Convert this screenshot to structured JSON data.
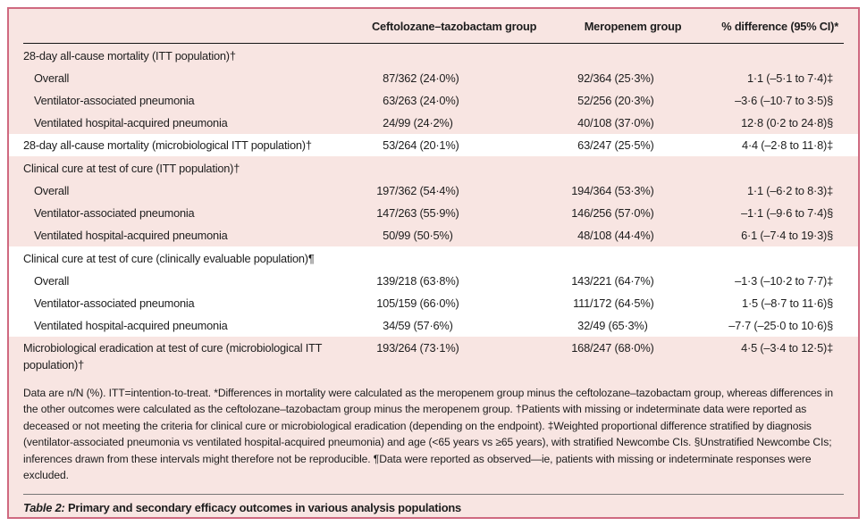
{
  "colors": {
    "table_bg": "#f8e5e2",
    "border": "#cf6980",
    "stripe": "#ffffff",
    "rule_dark": "#151515"
  },
  "table": {
    "header": {
      "col1": "",
      "col2": "Ceftolozane–tazobactam group",
      "col3": "Meropenem group",
      "col4": "% difference (95% CI)*"
    },
    "rows": [
      {
        "label": "28-day all-cause mortality (ITT population)†"
      },
      {
        "label": "Overall",
        "ceftolozane": "87/362 (24·0%)",
        "meropenem": "92/364 (25·3%)",
        "difference": "1·1 (–5·1 to 7·4)‡"
      },
      {
        "label": "Ventilator-associated pneumonia",
        "ceftolozane": "63/263 (24·0%)",
        "meropenem": "52/256 (20·3%)",
        "difference": "–3·6 (–10·7 to 3·5)§"
      },
      {
        "label": "Ventilated hospital-acquired pneumonia",
        "ceftolozane": "24/99 (24·2%)",
        "meropenem": "40/108 (37·0%)",
        "difference": "12·8 (0·2 to 24·8)§"
      },
      {
        "label": "28-day all-cause mortality (microbiological ITT population)†",
        "ceftolozane": "53/264 (20·1%)",
        "meropenem": "63/247 (25·5%)",
        "difference": "4·4 (–2·8 to 11·8)‡"
      },
      {
        "label": "Clinical cure at test of cure (ITT population)†"
      },
      {
        "label": "Overall",
        "ceftolozane": "197/362 (54·4%)",
        "meropenem": "194/364 (53·3%)",
        "difference": "1·1 (–6·2 to 8·3)‡"
      },
      {
        "label": "Ventilator-associated pneumonia",
        "ceftolozane": "147/263 (55·9%)",
        "meropenem": "146/256 (57·0%)",
        "difference": "–1·1 (–9·6 to 7·4)§"
      },
      {
        "label": "Ventilated hospital-acquired pneumonia",
        "ceftolozane": "50/99 (50·5%)",
        "meropenem": "48/108 (44·4%)",
        "difference": "6·1 (–7·4 to 19·3)§"
      },
      {
        "label": "Clinical cure at test of cure (clinically evaluable population)¶"
      },
      {
        "label": "Overall",
        "ceftolozane": "139/218 (63·8%)",
        "meropenem": "143/221 (64·7%)",
        "difference": "–1·3 (–10·2 to 7·7)‡"
      },
      {
        "label": "Ventilator-associated pneumonia",
        "ceftolozane": "105/159 (66·0%)",
        "meropenem": "111/172 (64·5%)",
        "difference": "1·5 (–8·7 to 11·6)§"
      },
      {
        "label": "Ventilated hospital-acquired pneumonia",
        "ceftolozane": "34/59 (57·6%)",
        "meropenem": "32/49 (65·3%)",
        "difference": "–7·7 (–25·0 to 10·6)§"
      },
      {
        "label": "Microbiological eradication at test of cure (microbiological ITT population)†",
        "ceftolozane": "193/264 (73·1%)",
        "meropenem": "168/247 (68·0%)",
        "difference": "4·5 (–3·4 to 12·5)‡"
      }
    ]
  },
  "footnote": "Data are n/N (%). ITT=intention-to-treat. *Differences in mortality were calculated as the meropenem group minus the ceftolozane–tazobactam group, whereas differences in the other outcomes were calculated as the ceftolozane–tazobactam group minus the meropenem group. †Patients with missing or indeterminate data were reported as deceased or not meeting the criteria for clinical cure or microbiological eradication (depending on the endpoint). ‡Weighted proportional difference stratified by diagnosis (ventilator-associated pneumonia vs ventilated hospital-acquired pneumonia) and age (<65 years vs ≥65 years), with stratified Newcombe CIs. §Unstratified Newcombe CIs; inferences drawn from these intervals might therefore not be reproducible. ¶Data were reported as observed—ie, patients with missing or indeterminate responses were excluded.",
  "caption": {
    "prefix": "Table 2:",
    "text": " Primary and secondary efficacy outcomes in various analysis populations"
  }
}
